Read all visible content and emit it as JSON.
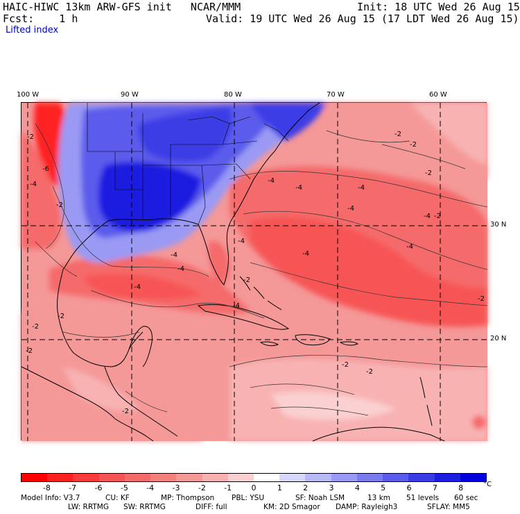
{
  "header": {
    "title": "HAIC-HIWC 13km ARW-GFS init   NCAR/MMM",
    "init": "Init: 18 UTC Wed 26 Aug 15",
    "fcst": "Fcst:    1 h",
    "valid": "Valid: 19 UTC Wed 26 Aug 15 (17 LDT Wed 26 Aug 15)",
    "field": "Lifted index"
  },
  "axes": {
    "longitudes": [
      "100 W",
      "90 W",
      "80 W",
      "70 W",
      "60 W"
    ],
    "latitudes": [
      "30 N",
      "20 N"
    ]
  },
  "contour_labels": {
    "values": [
      "-2",
      "-4",
      "-6",
      "-2",
      "-4",
      "-4",
      "-4",
      "-2",
      "-2",
      "-2",
      "-2",
      "-4",
      "-4",
      "-2",
      "-4",
      "-4",
      "-4",
      "-4",
      "-4",
      "-4",
      "-2",
      "-2",
      "-2",
      "-2",
      "-2",
      "-2",
      "-2",
      "-4"
    ]
  },
  "colorbar": {
    "ticks": [
      "-8",
      "-7",
      "-6",
      "-5",
      "-4",
      "-3",
      "-2",
      "-1",
      "0",
      "1",
      "2",
      "3",
      "4",
      "5",
      "6",
      "7",
      "8"
    ],
    "unit": "°C",
    "colors": [
      "#ff0000",
      "#ff2020",
      "#fb3c3c",
      "#f75555",
      "#f56a6a",
      "#f48080",
      "#f59898",
      "#f8b2b2",
      "#fbd0d0",
      "#ffffff",
      "#d7d7fb",
      "#b9b9f8",
      "#9a9af4",
      "#7b7bf0",
      "#5c5cec",
      "#3c3ce6",
      "#1e1ee0",
      "#0000dc"
    ]
  },
  "footer": {
    "line1": [
      "Model Info: V3.7",
      "CU: KF",
      "MP: Thompson",
      "PBL: YSU",
      "SF: Noah LSM",
      "13 km",
      "51 levels",
      "60 sec"
    ],
    "line2": [
      "LW: RRTMG",
      "SW: RRTMG",
      "DIFF: full",
      "KM: 2D Smagor",
      "DAMP: Rayleigh3",
      "SFLAY: MM5"
    ]
  }
}
